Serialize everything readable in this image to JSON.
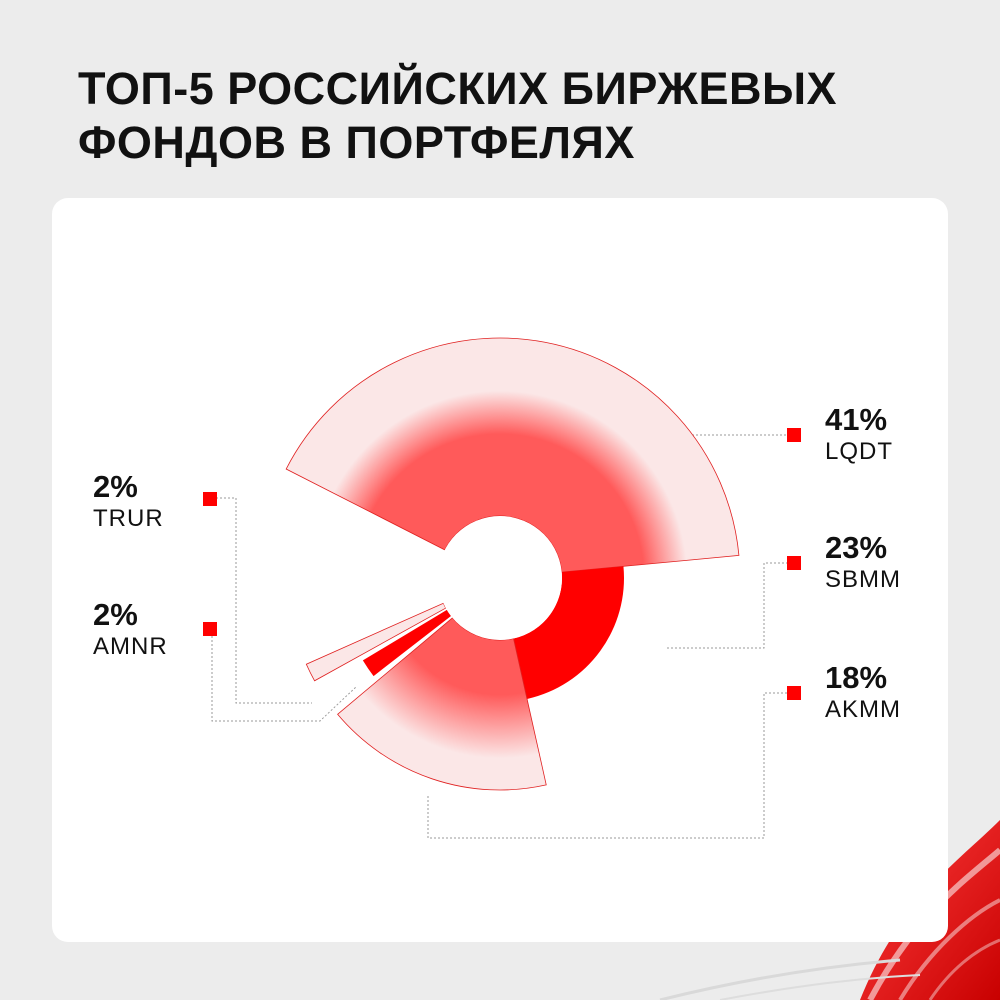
{
  "title": {
    "line1": "ТОП-5 РОССИЙСКИХ БИРЖЕВЫХ",
    "line2": "ФОНДОВ В ПОРТФЕЛЯХ"
  },
  "colors": {
    "accent": "#ff0000",
    "mid": "#ff5a5a",
    "light": "#fbe7e7",
    "stroke": "#e02020",
    "background": "#ececec",
    "card": "#ffffff"
  },
  "chart_data": {
    "type": "pie",
    "variant": "rose",
    "title": "ТОП-5 РОССИЙСКИХ БИРЖЕВЫХ ФОНДОВ В ПОРТФЕЛЯХ",
    "slices": [
      {
        "name": "LQDT",
        "value": 41,
        "label": "41%",
        "style": "gradient"
      },
      {
        "name": "SBMM",
        "value": 23,
        "label": "23%",
        "style": "solid"
      },
      {
        "name": "AKMM",
        "value": 18,
        "label": "18%",
        "style": "gradient"
      },
      {
        "name": "AMNR",
        "value": 2,
        "label": "2%",
        "style": "solid"
      },
      {
        "name": "TRUR",
        "value": 2,
        "label": "2%",
        "style": "gradient"
      }
    ],
    "legend": "labels around chart"
  }
}
